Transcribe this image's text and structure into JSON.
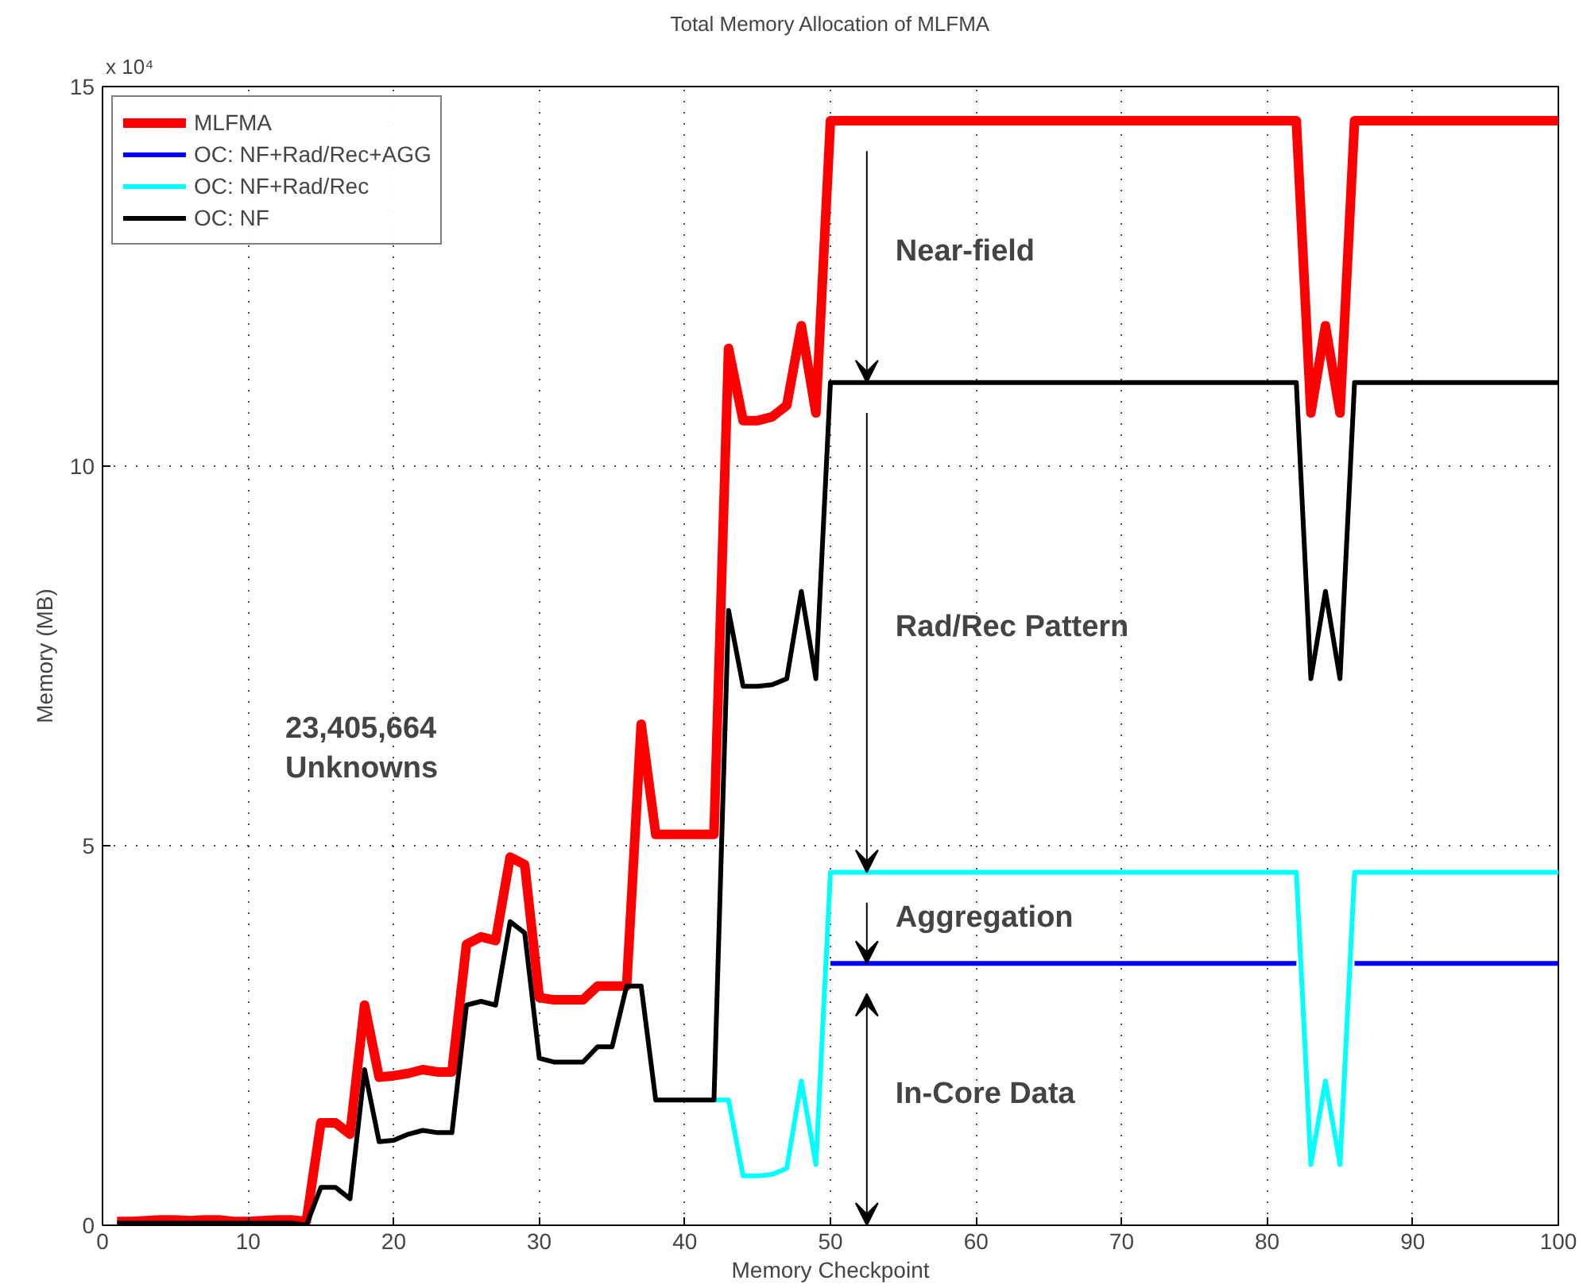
{
  "chart_data": {
    "type": "line",
    "title": "Total Memory Allocation of MLFMA",
    "xlabel": "Memory Checkpoint",
    "ylabel": "Memory (MB)",
    "x": [
      1,
      2,
      3,
      4,
      5,
      6,
      7,
      8,
      9,
      10,
      11,
      12,
      13,
      14,
      15,
      16,
      17,
      18,
      19,
      20,
      21,
      22,
      23,
      24,
      25,
      26,
      27,
      28,
      29,
      30,
      31,
      32,
      33,
      34,
      35,
      36,
      37,
      38,
      39,
      40,
      41,
      42,
      43,
      44,
      45,
      46,
      47,
      48,
      49,
      50,
      51,
      52,
      53,
      54,
      55,
      56,
      57,
      58,
      59,
      60,
      61,
      62,
      63,
      64,
      65,
      66,
      67,
      68,
      69,
      70,
      71,
      72,
      73,
      74,
      75,
      76,
      77,
      78,
      79,
      80,
      81,
      82,
      83,
      84,
      85,
      86,
      87,
      88,
      89,
      90,
      91,
      92,
      93,
      94,
      95,
      96,
      97,
      98,
      99,
      100
    ],
    "series": [
      {
        "name": "MLFMA",
        "color": "#ff0000",
        "values": [
          0.05,
          0.05,
          0.06,
          0.07,
          0.07,
          0.06,
          0.07,
          0.07,
          0.05,
          0.05,
          0.06,
          0.07,
          0.07,
          0.05,
          1.35,
          1.35,
          1.2,
          2.9,
          1.95,
          1.97,
          2.0,
          2.05,
          2.02,
          2.02,
          3.7,
          3.8,
          3.75,
          4.85,
          4.75,
          3.0,
          2.97,
          2.97,
          2.97,
          3.15,
          3.15,
          3.15,
          6.6,
          5.15,
          5.15,
          5.15,
          5.15,
          5.15,
          11.55,
          10.6,
          10.6,
          10.65,
          10.8,
          11.85,
          10.7,
          14.55,
          14.55,
          14.55,
          14.55,
          14.55,
          14.55,
          14.55,
          14.55,
          14.55,
          14.55,
          14.55,
          14.55,
          14.55,
          14.55,
          14.55,
          14.55,
          14.55,
          14.55,
          14.55,
          14.55,
          14.55,
          14.55,
          14.55,
          14.55,
          14.55,
          14.55,
          14.55,
          14.55,
          14.55,
          14.55,
          14.55,
          14.55,
          14.55,
          10.7,
          11.85,
          10.7,
          14.55,
          14.55,
          14.55,
          14.55,
          14.55,
          14.55,
          14.55,
          14.55,
          14.55,
          14.55,
          14.55,
          14.55,
          14.55,
          14.55,
          14.55
        ]
      },
      {
        "name": "OC: NF+Rad/Rec+AGG",
        "color": "#0000ff",
        "values": [
          null,
          null,
          null,
          null,
          null,
          null,
          null,
          null,
          null,
          null,
          null,
          null,
          null,
          null,
          null,
          null,
          null,
          null,
          null,
          null,
          null,
          null,
          null,
          null,
          null,
          null,
          null,
          null,
          null,
          null,
          null,
          null,
          null,
          null,
          null,
          null,
          null,
          null,
          null,
          null,
          null,
          null,
          null,
          null,
          null,
          null,
          null,
          null,
          null,
          3.45,
          3.45,
          3.45,
          3.45,
          3.45,
          3.45,
          3.45,
          3.45,
          3.45,
          3.45,
          3.45,
          3.45,
          3.45,
          3.45,
          3.45,
          3.45,
          3.45,
          3.45,
          3.45,
          3.45,
          3.45,
          3.45,
          3.45,
          3.45,
          3.45,
          3.45,
          3.45,
          3.45,
          3.45,
          3.45,
          3.45,
          3.45,
          3.45,
          null,
          null,
          null,
          3.45,
          3.45,
          3.45,
          3.45,
          3.45,
          3.45,
          3.45,
          3.45,
          3.45,
          3.45,
          3.45,
          3.45,
          3.45,
          3.45,
          3.45
        ]
      },
      {
        "name": "OC: NF+Rad/Rec",
        "color": "#00ffff",
        "values": [
          null,
          null,
          null,
          null,
          null,
          null,
          null,
          null,
          null,
          null,
          null,
          null,
          null,
          null,
          null,
          null,
          null,
          null,
          null,
          null,
          null,
          null,
          null,
          null,
          null,
          null,
          null,
          null,
          null,
          null,
          null,
          null,
          null,
          null,
          null,
          null,
          null,
          null,
          null,
          null,
          null,
          1.65,
          1.65,
          0.65,
          0.65,
          0.67,
          0.75,
          1.9,
          0.8,
          4.65,
          4.65,
          4.65,
          4.65,
          4.65,
          4.65,
          4.65,
          4.65,
          4.65,
          4.65,
          4.65,
          4.65,
          4.65,
          4.65,
          4.65,
          4.65,
          4.65,
          4.65,
          4.65,
          4.65,
          4.65,
          4.65,
          4.65,
          4.65,
          4.65,
          4.65,
          4.65,
          4.65,
          4.65,
          4.65,
          4.65,
          4.65,
          4.65,
          0.8,
          1.9,
          0.8,
          4.65,
          4.65,
          4.65,
          4.65,
          4.65,
          4.65,
          4.65,
          4.65,
          4.65,
          4.65,
          4.65,
          4.65,
          4.65,
          4.65,
          4.65
        ]
      },
      {
        "name": "OC: NF",
        "color": "#000000",
        "values": [
          0.03,
          0.03,
          0.03,
          0.03,
          0.03,
          0.03,
          0.03,
          0.03,
          0.03,
          0.03,
          0.03,
          0.03,
          0.03,
          0.0,
          0.5,
          0.5,
          0.35,
          2.05,
          1.1,
          1.12,
          1.2,
          1.25,
          1.22,
          1.22,
          2.9,
          2.95,
          2.9,
          4.0,
          3.85,
          2.2,
          2.15,
          2.15,
          2.15,
          2.35,
          2.35,
          3.15,
          3.15,
          1.65,
          1.65,
          1.65,
          1.65,
          1.65,
          8.1,
          7.1,
          7.1,
          7.12,
          7.2,
          8.35,
          7.2,
          11.1,
          11.1,
          11.1,
          11.1,
          11.1,
          11.1,
          11.1,
          11.1,
          11.1,
          11.1,
          11.1,
          11.1,
          11.1,
          11.1,
          11.1,
          11.1,
          11.1,
          11.1,
          11.1,
          11.1,
          11.1,
          11.1,
          11.1,
          11.1,
          11.1,
          11.1,
          11.1,
          11.1,
          11.1,
          11.1,
          11.1,
          11.1,
          11.1,
          7.2,
          8.35,
          7.2,
          11.1,
          11.1,
          11.1,
          11.1,
          11.1,
          11.1,
          11.1,
          11.1,
          11.1,
          11.1,
          11.1,
          11.1,
          11.1,
          11.1,
          11.1
        ]
      }
    ],
    "xlim": [
      0,
      100
    ],
    "ylim": [
      0,
      15
    ],
    "xticks": [
      0,
      10,
      20,
      30,
      40,
      50,
      60,
      70,
      80,
      90,
      100
    ],
    "yticks": [
      0,
      5,
      10,
      15
    ],
    "grid": true,
    "legend": "top left",
    "line_style": "solid",
    "marker": "none",
    "annotations": [
      "x 10⁴",
      "23,405,664\nUnknowns",
      "Near-field",
      "Rad/Rec Pattern",
      "Aggregation",
      "In-Core Data"
    ]
  }
}
